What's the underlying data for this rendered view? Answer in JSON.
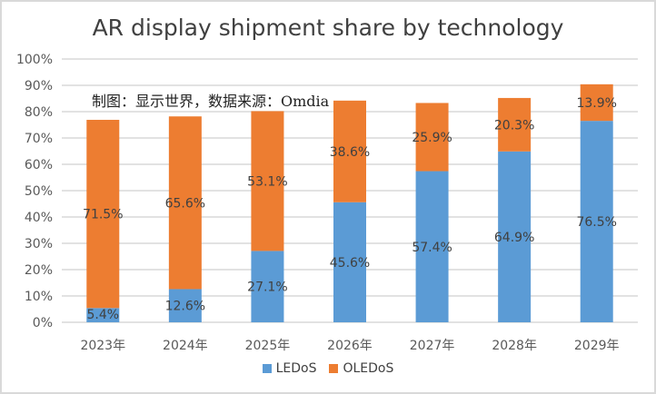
{
  "chart_data": {
    "type": "bar",
    "stacked": true,
    "title": "AR display shipment share by technology",
    "annotation": "制图：显示世界，数据来源：Omdia",
    "categories": [
      "2023年",
      "2024年",
      "2025年",
      "2026年",
      "2027年",
      "2028年",
      "2029年"
    ],
    "series": [
      {
        "name": "LEDoS",
        "color": "#5b9bd5",
        "values": [
          5.4,
          12.6,
          27.1,
          45.6,
          57.4,
          64.9,
          76.5
        ],
        "labels": [
          "5.4%",
          "12.6%",
          "27.1%",
          "45.6%",
          "57.4%",
          "64.9%",
          "76.5%"
        ]
      },
      {
        "name": "OLEDoS",
        "color": "#ed7d31",
        "values": [
          71.5,
          65.6,
          53.1,
          38.6,
          25.9,
          20.3,
          13.9
        ],
        "labels": [
          "71.5%",
          "65.6%",
          "53.1%",
          "38.6%",
          "25.9%",
          "20.3%",
          "13.9%"
        ]
      }
    ],
    "ylim": [
      0,
      100
    ],
    "yticks": [
      "0%",
      "10%",
      "20%",
      "30%",
      "40%",
      "50%",
      "60%",
      "70%",
      "80%",
      "90%",
      "100%"
    ],
    "grid": true,
    "legend_position": "bottom"
  }
}
